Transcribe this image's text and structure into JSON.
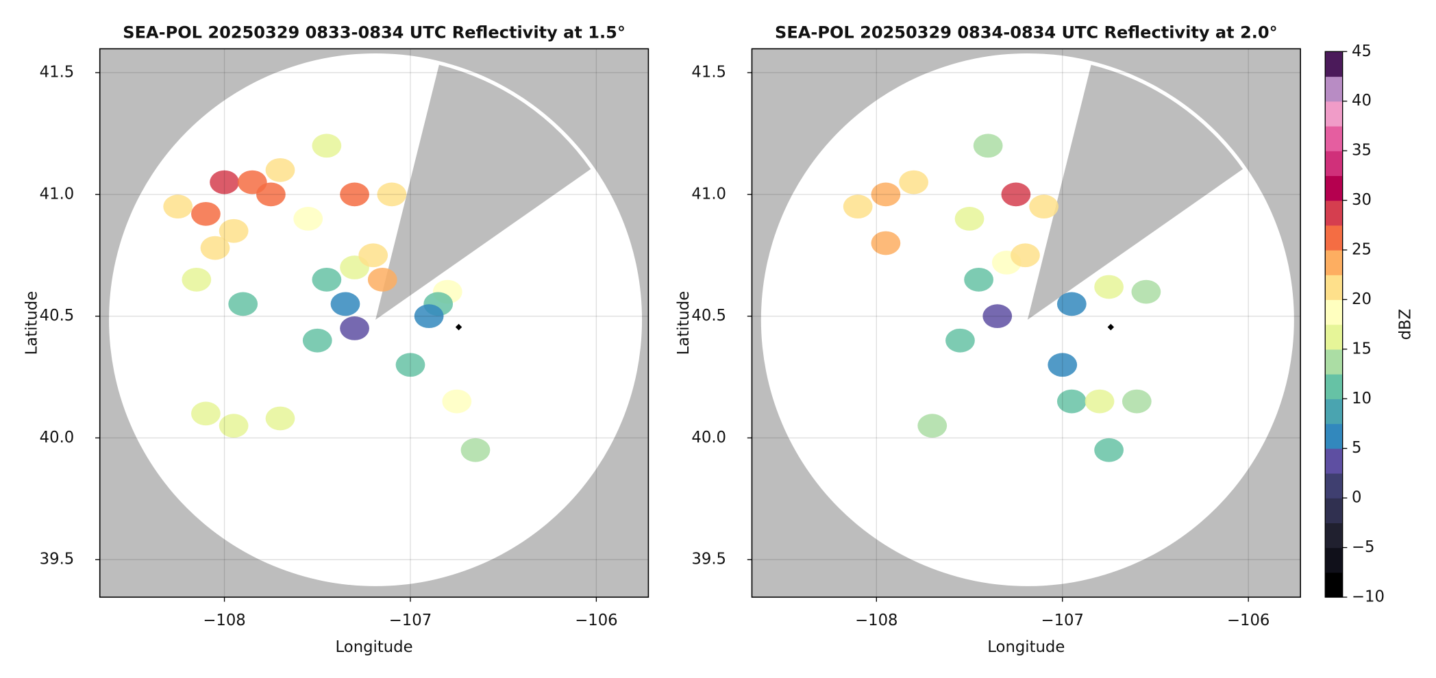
{
  "chart_data": [
    {
      "type": "radar-ppi",
      "title": "SEA-POL 20250329 0833-0834 UTC Reflectivity at 1.5°",
      "x_label": "Longitude",
      "y_label": "Latitude",
      "xlim": [
        -108.67,
        -105.72
      ],
      "ylim": [
        39.346,
        41.598
      ],
      "xticks": [
        {
          "value": -108,
          "label": "−108"
        },
        {
          "value": -107,
          "label": "−107"
        },
        {
          "value": -106,
          "label": "−106"
        }
      ],
      "yticks": [
        39.5,
        {
          "value": 40,
          "label": "40.0"
        },
        40.5,
        {
          "value": 41,
          "label": "41.0"
        },
        41.5
      ],
      "grid": true,
      "x": [
        -108.25,
        -108.1,
        -108.0,
        -107.85,
        -107.75,
        -107.7,
        -107.95,
        -108.05,
        -107.55,
        -107.45,
        -107.3,
        -107.1,
        -107.45,
        -107.3,
        -107.2,
        -107.15,
        -107.35,
        -107.5,
        -107.3,
        -106.8,
        -106.85,
        -106.9,
        -107.0,
        -106.75,
        -106.65,
        -107.7,
        -108.1,
        -107.95,
        -108.15,
        -107.9
      ],
      "y": [
        40.95,
        40.92,
        41.05,
        41.05,
        41.0,
        41.1,
        40.85,
        40.78,
        40.9,
        41.2,
        41.0,
        41.0,
        40.65,
        40.7,
        40.75,
        40.65,
        40.55,
        40.4,
        40.45,
        40.6,
        40.55,
        40.5,
        40.3,
        40.15,
        39.95,
        40.08,
        40.1,
        40.05,
        40.65,
        40.55
      ],
      "values": [
        22,
        27,
        28,
        27,
        25,
        22,
        22,
        22,
        18,
        17,
        26,
        20,
        12,
        16,
        20,
        24,
        5,
        12,
        4,
        18,
        12,
        6,
        12,
        18,
        14,
        17,
        17,
        16,
        16,
        12
      ],
      "site": [
        -106.74,
        40.455
      ]
    },
    {
      "type": "radar-ppi",
      "title": "SEA-POL 20250329 0834-0834 UTC Reflectivity at 2.0°",
      "x_label": "Longitude",
      "y_label": "Latitude",
      "xlim": [
        -108.67,
        -105.72
      ],
      "ylim": [
        39.346,
        41.598
      ],
      "xticks": [
        {
          "value": -108,
          "label": "−108"
        },
        {
          "value": -107,
          "label": "−107"
        },
        {
          "value": -106,
          "label": "−106"
        }
      ],
      "yticks": [
        39.5,
        {
          "value": 40,
          "label": "40.0"
        },
        40.5,
        {
          "value": 41,
          "label": "41.0"
        },
        41.5
      ],
      "grid": true,
      "x": [
        -108.1,
        -107.95,
        -107.8,
        -107.95,
        -107.4,
        -107.25,
        -107.1,
        -107.5,
        -107.45,
        -107.3,
        -107.2,
        -107.35,
        -107.55,
        -106.95,
        -106.75,
        -106.55,
        -107.0,
        -106.95,
        -106.8,
        -106.6,
        -106.75,
        -107.7
      ],
      "y": [
        40.95,
        41.0,
        41.05,
        40.8,
        41.2,
        41.0,
        40.95,
        40.9,
        40.65,
        40.72,
        40.75,
        40.5,
        40.4,
        40.55,
        40.62,
        40.6,
        40.3,
        40.15,
        40.15,
        40.15,
        39.95,
        40.05
      ],
      "values": [
        22,
        24,
        22,
        24,
        14,
        28,
        22,
        16,
        12,
        18,
        20,
        4,
        10,
        6,
        16,
        14,
        5,
        12,
        16,
        14,
        12,
        14
      ],
      "site": [
        -106.74,
        40.455
      ]
    }
  ],
  "colorbar": {
    "label": "dBZ",
    "clim": [
      -10,
      45
    ],
    "ticks": [
      {
        "value": -10,
        "label": "−10"
      },
      {
        "value": -5,
        "label": "−5"
      },
      0,
      5,
      10,
      15,
      20,
      25,
      30,
      35,
      40,
      45
    ],
    "colors": [
      "#000000",
      "#10101a",
      "#20202f",
      "#303050",
      "#3f3f70",
      "#5e4fa2",
      "#3288bd",
      "#4aa4b0",
      "#66c2a5",
      "#abdda4",
      "#e6f598",
      "#ffffbf",
      "#fee08b",
      "#fdae61",
      "#f46d43",
      "#d53e4f",
      "#b5004f",
      "#d0307a",
      "#e55ea0",
      "#f09cc8",
      "#b88cc4",
      "#4b1a5a"
    ]
  }
}
